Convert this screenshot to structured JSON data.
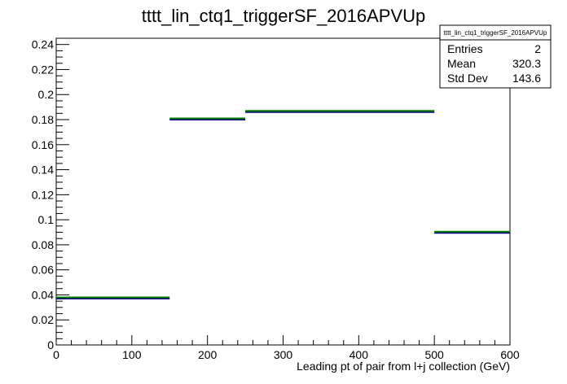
{
  "chart_data": {
    "type": "histogram",
    "title": "tttt_lin_ctq1_triggerSF_2016APVUp",
    "xlabel": "Leading pt of pair from l+j collection (GeV)",
    "ylabel": "",
    "xlim": [
      0,
      600
    ],
    "ylim": [
      0,
      0.245
    ],
    "x_ticks": [
      0,
      100,
      200,
      300,
      400,
      500,
      600
    ],
    "y_ticks": [
      0,
      0.02,
      0.04,
      0.06,
      0.08,
      0.1,
      0.12,
      0.14,
      0.16,
      0.18,
      0.2,
      0.22,
      0.24
    ],
    "y_tick_labels": [
      "0",
      "0.02",
      "0.04",
      "0.06",
      "0.08",
      "0.1",
      "0.12",
      "0.14",
      "0.16",
      "0.18",
      "0.2",
      "0.22",
      "0.24"
    ],
    "grid": false,
    "bins": [
      {
        "x_low": 0,
        "x_high": 150,
        "value": 0.038
      },
      {
        "x_low": 150,
        "x_high": 250,
        "value": 0.181
      },
      {
        "x_low": 250,
        "x_high": 500,
        "value": 0.187
      },
      {
        "x_low": 500,
        "x_high": 600,
        "value": 0.0905
      }
    ],
    "series": [
      {
        "color": "#000080",
        "values": [
          0.038,
          0.181,
          0.187,
          0.0905
        ]
      },
      {
        "color": "#008000",
        "values": [
          0.038,
          0.181,
          0.187,
          0.0905
        ]
      }
    ],
    "stats_box": {
      "name": "tttt_lin_ctq1_triggerSF_2016APVUp",
      "placement": "top-right",
      "rows": [
        {
          "label": "Entries",
          "value": "2"
        },
        {
          "label": "Mean",
          "value": "320.3"
        },
        {
          "label": "Std Dev",
          "value": "143.6"
        }
      ]
    }
  }
}
